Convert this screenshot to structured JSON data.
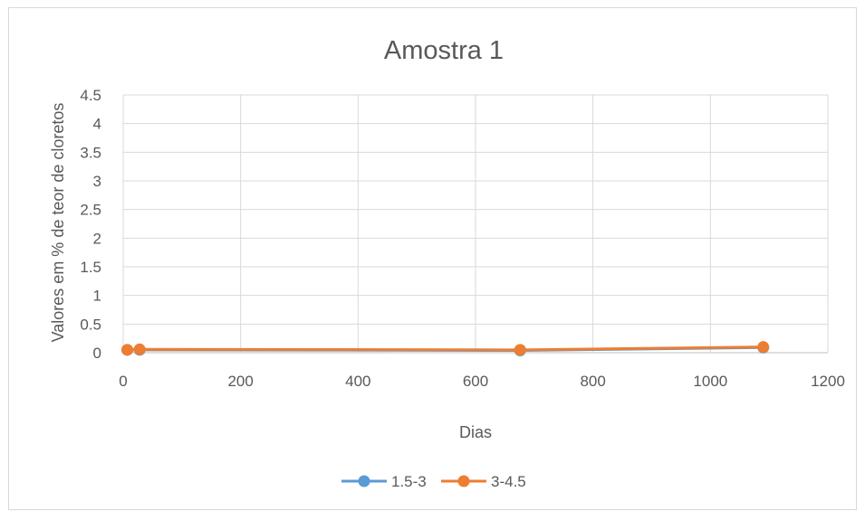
{
  "chart_data": {
    "type": "scatter",
    "title": "Amostra 1",
    "xlabel": "Dias",
    "ylabel": "Valores em % de teor de cloretos",
    "xlim": [
      0,
      1200
    ],
    "ylim": [
      0,
      4.5
    ],
    "x_ticks": [
      "0",
      "200",
      "400",
      "600",
      "800",
      "1000",
      "1200"
    ],
    "y_ticks": [
      "0",
      "0.5",
      "1",
      "1.5",
      "2",
      "2.5",
      "3",
      "3.5",
      "4",
      "4.5"
    ],
    "x_tick_values": [
      0,
      200,
      400,
      600,
      800,
      1000,
      1200
    ],
    "y_tick_values": [
      0,
      0.5,
      1,
      1.5,
      2,
      2.5,
      3,
      3.5,
      4,
      4.5
    ],
    "grid": true,
    "legend_position": "bottom",
    "series": [
      {
        "name": "1.5-3",
        "color": "#5b9bd5",
        "points": [
          [
            7,
            0.05
          ],
          [
            28,
            0.05
          ],
          [
            676,
            0.04
          ],
          [
            1090,
            0.09
          ]
        ]
      },
      {
        "name": "3-4.5",
        "color": "#ed7d31",
        "points": [
          [
            7,
            0.05
          ],
          [
            28,
            0.06
          ],
          [
            676,
            0.05
          ],
          [
            1090,
            0.1
          ]
        ]
      }
    ]
  }
}
